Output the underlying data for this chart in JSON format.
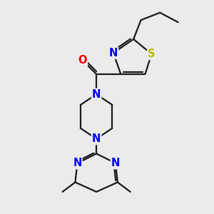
{
  "background_color": "#ebebeb",
  "bond_color": "#1a1a1a",
  "N_color": "#0000ee",
  "S_color": "#bbbb00",
  "O_color": "#ee0000",
  "line_width": 1.6,
  "font_size": 10.5,
  "fig_width": 3.0,
  "fig_height": 3.0,
  "dpi": 100,
  "xlim": [
    0,
    10
  ],
  "ylim": [
    0,
    10
  ]
}
